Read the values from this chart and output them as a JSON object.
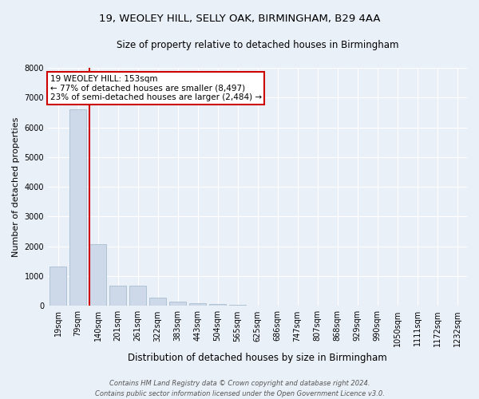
{
  "title_line1": "19, WEOLEY HILL, SELLY OAK, BIRMINGHAM, B29 4AA",
  "title_line2": "Size of property relative to detached houses in Birmingham",
  "xlabel": "Distribution of detached houses by size in Birmingham",
  "ylabel": "Number of detached properties",
  "categories": [
    "19sqm",
    "79sqm",
    "140sqm",
    "201sqm",
    "261sqm",
    "322sqm",
    "383sqm",
    "443sqm",
    "504sqm",
    "565sqm",
    "625sqm",
    "686sqm",
    "747sqm",
    "807sqm",
    "868sqm",
    "929sqm",
    "990sqm",
    "1050sqm",
    "1111sqm",
    "1172sqm",
    "1232sqm"
  ],
  "values": [
    1310,
    6600,
    2080,
    680,
    670,
    270,
    150,
    90,
    50,
    30,
    20,
    15,
    10,
    5,
    5,
    5,
    5,
    5,
    5,
    5,
    5
  ],
  "bar_color": "#cdd9e8",
  "bar_edge_color": "#a8bdd0",
  "vline_color": "#cc0000",
  "annotation_title": "19 WEOLEY HILL: 153sqm",
  "annotation_line1": "← 77% of detached houses are smaller (8,497)",
  "annotation_line2": "23% of semi-detached houses are larger (2,484) →",
  "annotation_box_edge_color": "#cc0000",
  "ylim": [
    0,
    8000
  ],
  "yticks": [
    0,
    1000,
    2000,
    3000,
    4000,
    5000,
    6000,
    7000,
    8000
  ],
  "footer_line1": "Contains HM Land Registry data © Crown copyright and database right 2024.",
  "footer_line2": "Contains public sector information licensed under the Open Government Licence v3.0.",
  "bg_color": "#eaf0f8",
  "plot_bg_color": "#eaf0f8",
  "grid_color": "#ffffff",
  "title1_fontsize": 9.5,
  "title2_fontsize": 8.5,
  "ylabel_fontsize": 8,
  "xlabel_fontsize": 8.5,
  "tick_fontsize": 7,
  "footer_fontsize": 6,
  "ann_fontsize": 7.5
}
